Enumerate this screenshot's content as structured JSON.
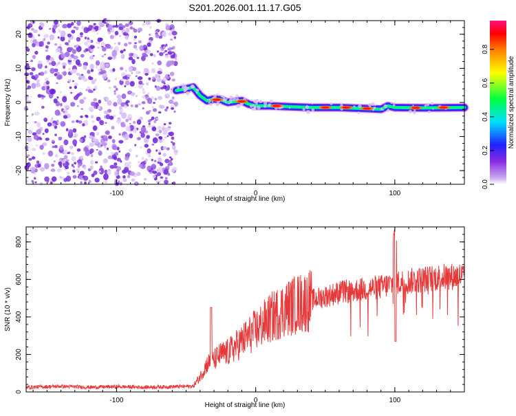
{
  "chart_data": [
    {
      "type": "heatmap",
      "title": "S201.2026.001.11.17.G05",
      "xlabel": "Height of straight line (km)",
      "ylabel": "Frequency (Hz)",
      "xlim": [
        -165,
        150
      ],
      "ylim": [
        -24,
        24
      ],
      "x_ticks": [
        -100,
        0,
        100
      ],
      "y_ticks": [
        -20,
        -10,
        0,
        10,
        20
      ],
      "noise_region_x": [
        -165,
        -57
      ],
      "signal_track": {
        "x": [
          -57,
          -50,
          -45,
          -40,
          -35,
          -30,
          -25,
          -20,
          -15,
          -10,
          -5,
          0,
          10,
          20,
          40,
          60,
          80,
          90,
          95,
          100,
          120,
          150
        ],
        "freq": [
          3.5,
          4,
          4.5,
          2,
          0.5,
          1,
          0.8,
          0,
          0.3,
          0.5,
          -0.5,
          -1,
          -1,
          -1.2,
          -1.5,
          -1.5,
          -1.8,
          -2,
          -1,
          -1.5,
          -1.6,
          -1.5
        ]
      },
      "colorbar": {
        "label": "Normalized spectral amplitude",
        "ticks": [
          "0.0",
          "0.2",
          "0.4",
          "0.6",
          "0.8"
        ],
        "range": [
          0,
          0.97
        ]
      }
    },
    {
      "type": "line",
      "xlabel": "Height of straight line (km)",
      "ylabel": "SNR (10 * v/v)",
      "xlim": [
        -165,
        150
      ],
      "ylim": [
        0,
        880
      ],
      "x_ticks": [
        -100,
        0,
        100
      ],
      "y_ticks": [
        0,
        200,
        400,
        600,
        800
      ],
      "line_color": "#e8393a",
      "series": [
        {
          "name": "SNR",
          "x": [
            -165,
            -140,
            -120,
            -100,
            -80,
            -60,
            -45,
            -40,
            -35,
            -30,
            -25,
            -20,
            -15,
            -10,
            -5,
            0,
            5,
            10,
            20,
            30,
            40,
            50,
            60,
            70,
            80,
            90,
            100,
            110,
            120,
            130,
            140,
            150
          ],
          "values": [
            25,
            30,
            25,
            28,
            25,
            28,
            30,
            80,
            150,
            170,
            200,
            210,
            240,
            270,
            300,
            330,
            360,
            390,
            440,
            470,
            490,
            510,
            530,
            540,
            550,
            560,
            580,
            590,
            600,
            610,
            615,
            620
          ]
        }
      ]
    }
  ]
}
